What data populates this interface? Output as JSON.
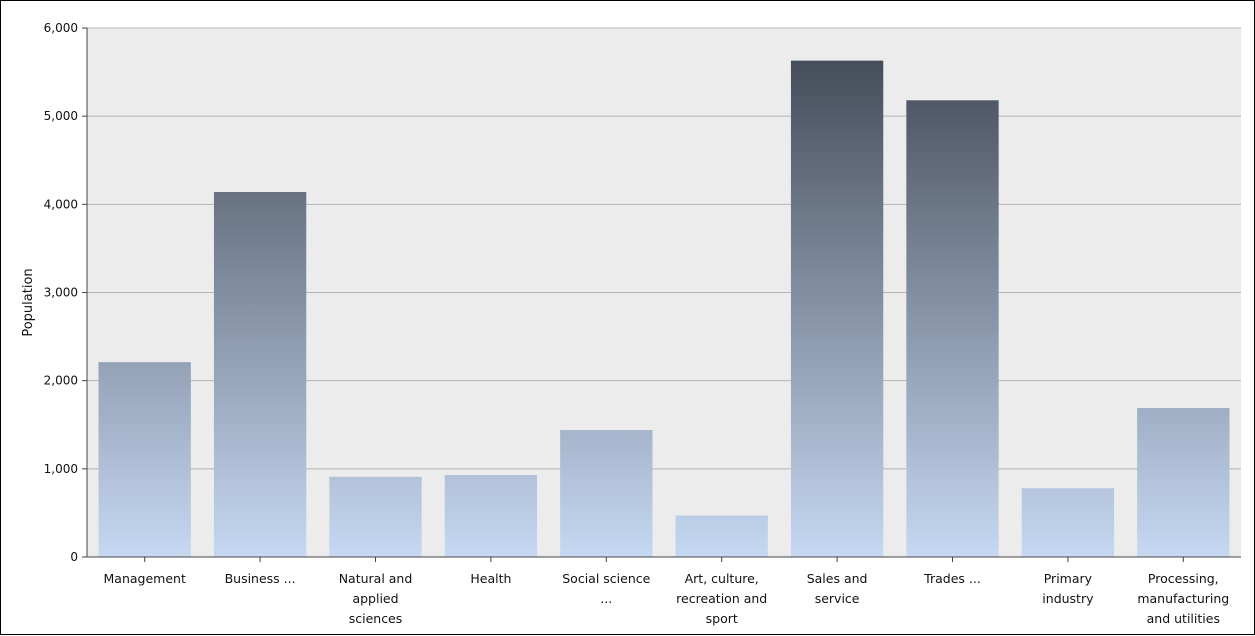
{
  "chart_data": {
    "type": "bar",
    "title": "",
    "xlabel": "",
    "ylabel": "Population",
    "ylim": [
      0,
      6000
    ],
    "yticks": [
      0,
      1000,
      2000,
      3000,
      4000,
      5000,
      6000
    ],
    "ytick_labels": [
      "0",
      "1,000",
      "2,000",
      "3,000",
      "4,000",
      "5,000",
      "6,000"
    ],
    "grid": true,
    "legend": "none",
    "categories": [
      "Management",
      "Business ...",
      "Natural and applied sciences",
      "Health",
      "Social science ...",
      "Art, culture, recreation and sport",
      "Sales and service",
      "Trades ...",
      "Primary industry",
      "Processing, manufacturing and utilities"
    ],
    "category_lines": [
      [
        "Management"
      ],
      [
        "Business ..."
      ],
      [
        "Natural and",
        "applied",
        "sciences"
      ],
      [
        "Health"
      ],
      [
        "Social science",
        "..."
      ],
      [
        "Art, culture,",
        "recreation and",
        "sport"
      ],
      [
        "Sales and",
        "service"
      ],
      [
        "Trades ..."
      ],
      [
        "Primary",
        "industry"
      ],
      [
        "Processing,",
        "manufacturing",
        "and utilities"
      ]
    ],
    "values": [
      2210,
      4140,
      910,
      930,
      1440,
      470,
      5630,
      5180,
      780,
      1690
    ],
    "colors": {
      "plot_background": "#ececec",
      "gridline": "#b4b4b4",
      "bar_top_dark": "#3d4450",
      "bar_bottom_light": "#c6d8f2"
    }
  }
}
